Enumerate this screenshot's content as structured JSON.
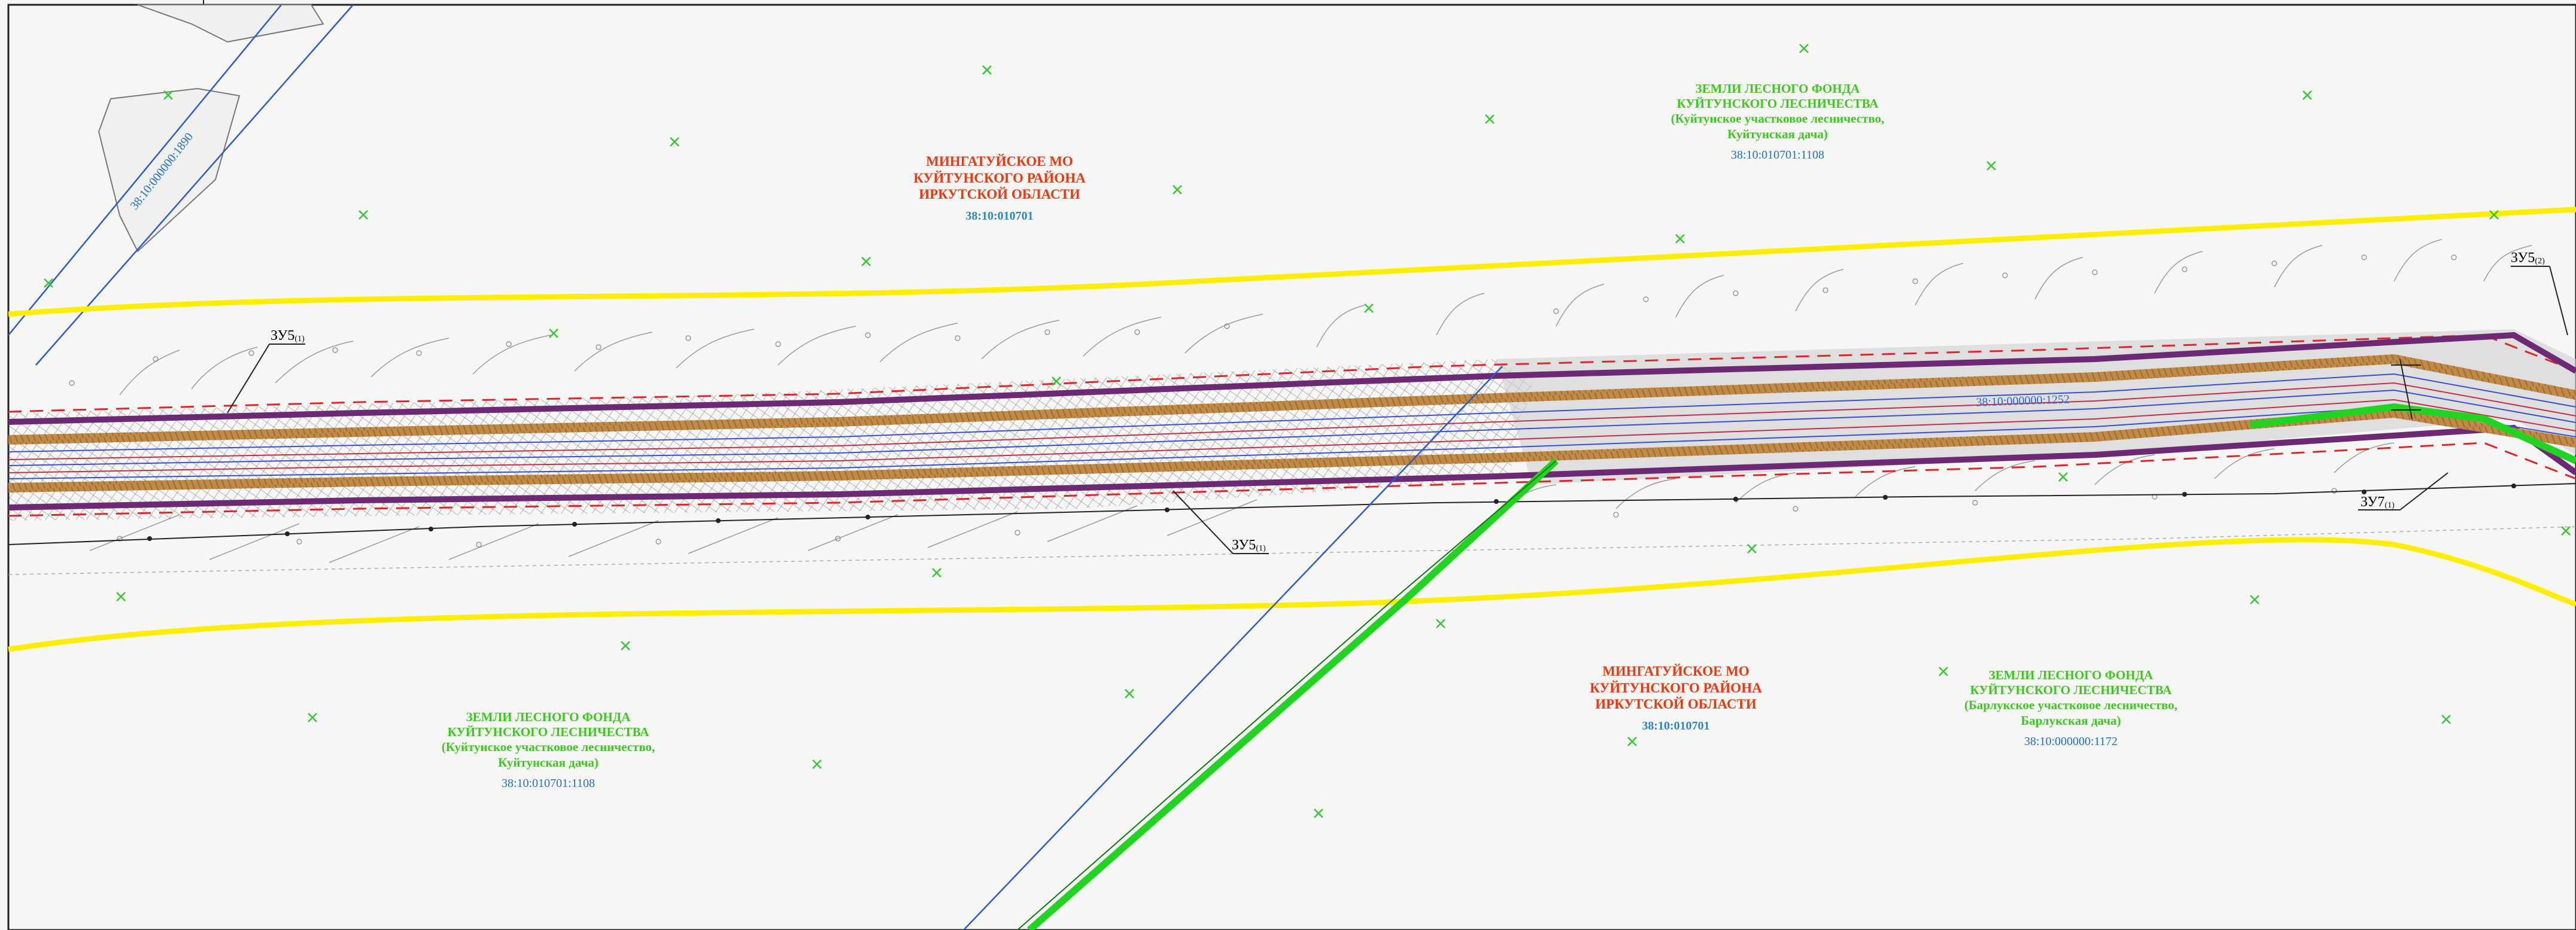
{
  "areas": {
    "mo_north": {
      "lines": [
        "МИНГАТУЙСКОЕ МО",
        "КУЙТУНСКОГО РАЙОНА",
        "ИРКУТСКОЙ ОБЛАСТИ"
      ],
      "code": "38:10:010701"
    },
    "forest_ne": {
      "lines": [
        "ЗЕМЛИ ЛЕСНОГО ФОНДА",
        "КУЙТУНСКОГО ЛЕСНИЧЕСТВА",
        "(Куйтунское участковое лесничество,",
        "Куйтунская дача)"
      ],
      "code": "38:10:010701:1108"
    },
    "forest_sw": {
      "lines": [
        "ЗЕМЛИ ЛЕСНОГО ФОНДА",
        "КУЙТУНСКОГО ЛЕСНИЧЕСТВА",
        "(Куйтунское участковое лесничество,",
        "Куйтунская дача)"
      ],
      "code": "38:10:010701:1108"
    },
    "mo_south": {
      "lines": [
        "МИНГАТУЙСКОЕ МО",
        "КУЙТУНСКОГО РАЙОНА",
        "ИРКУТСКОЙ ОБЛАСТИ"
      ],
      "code": "38:10:010701"
    },
    "forest_se": {
      "lines": [
        "ЗЕМЛИ ЛЕСНОГО ФОНДА",
        "КУЙТУНСКОГО ЛЕСНИЧЕСТВА",
        "(Барлукское участковое лесничество,",
        "Барлукская дача)"
      ],
      "code": "38:10:000000:1172"
    }
  },
  "parcels": {
    "nw_parcel": "38:10:000000:1890",
    "road_parcel": "38:10:000000:1252"
  },
  "zones": {
    "zu5_1a": {
      "main": "ЗУ5",
      "sub": "(1)"
    },
    "zu5_1b": {
      "main": "ЗУ5",
      "sub": "(1)"
    },
    "zu5_2": {
      "main": "ЗУ5",
      "sub": "(2)"
    },
    "zu7_1": {
      "main": "ЗУ7",
      "sub": "(1)"
    }
  },
  "colors": {
    "background": "#f6f7f5",
    "boundary_yellow": "#ffee00",
    "road_purple": "#6b2a73",
    "embankment_brown": "#b07a3a",
    "red_dashed": "#e0262a",
    "green_line": "#22d422",
    "cadastral_blue": "#2a5bd0",
    "tree_marker": "#34c834"
  }
}
